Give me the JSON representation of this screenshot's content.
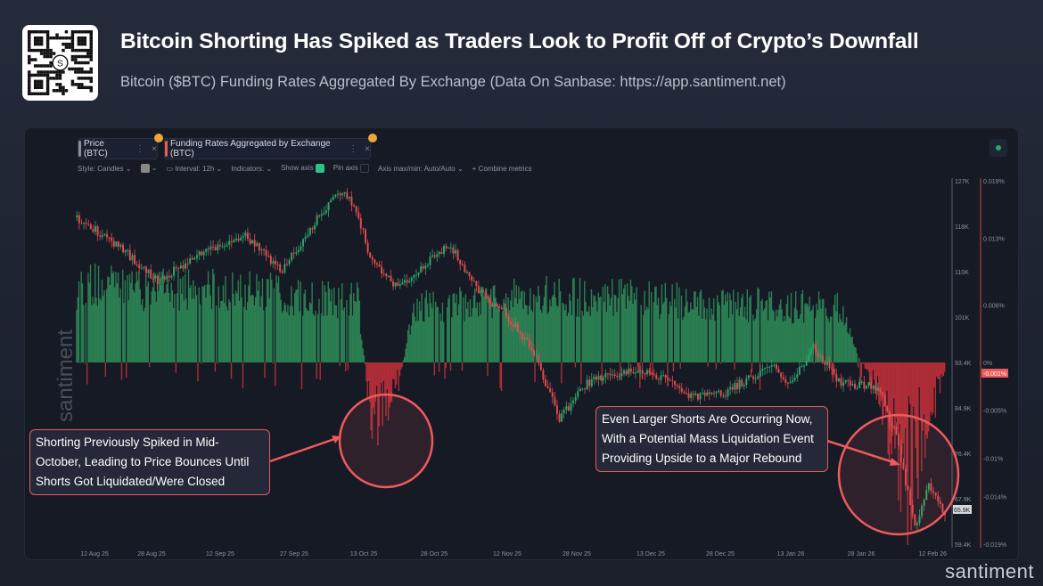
{
  "header": {
    "title": "Bitcoin Shorting Has Spiked as Traders Look to Profit Off of Crypto’s Downfall",
    "subtitle": "Bitcoin ($BTC) Funding Rates Aggregated By Exchange (Data On Sanbase: https://app.santiment.net)",
    "qr_logo_text": "S"
  },
  "tabs": [
    {
      "label": "Price (BTC)",
      "color": "#8a8f9a"
    },
    {
      "label": "Funding Rates Aggregated by Exchange (BTC)",
      "color": "#e9585a"
    }
  ],
  "toolbar": {
    "style": "Style: Candles",
    "interval": "Interval: 12h",
    "indicators": "Indicators:",
    "show_axis": "Show axis",
    "show_axis_checked": true,
    "pin_axis": "Pin axis",
    "pin_axis_checked": false,
    "axis_range": "Axis max/min: Auto/Auto",
    "combine": "+ Combine metrics"
  },
  "watermark": "santiment",
  "brand": "santiment",
  "annotations": [
    {
      "text": "Shorting Previously Spiked in Mid-October, Leading to Price Bounces Until Shorts Got Liquidated/Were Closed"
    },
    {
      "text": "Even Larger Shorts Are Occurring Now, With a Potential Mass Liquidation Event Providing Upside to a Major Rebound"
    }
  ],
  "colors": {
    "up": "#2fa36b",
    "down": "#e04a4f",
    "funding_pos": "#2e8a58",
    "funding_neg": "#c0303a",
    "accent": "#e9585a"
  },
  "chart_data": {
    "type": "candlestick+bar",
    "x_ticks": [
      "12 Aug 25",
      "28 Aug 25",
      "12 Sep 25",
      "27 Sep 25",
      "13 Oct 25",
      "28 Oct 25",
      "12 Nov 25",
      "28 Nov 25",
      "13 Dec 25",
      "28 Dec 25",
      "13 Jan 26",
      "28 Jan 26",
      "12 Feb 26"
    ],
    "price_axis": {
      "ticks": [
        "127K",
        "118K",
        "110K",
        "101K",
        "93.4K",
        "84.9K",
        "76.4K",
        "67.9K",
        "59.4K"
      ],
      "range": [
        59.4,
        127
      ],
      "unit": "K USD",
      "current": "65.9K"
    },
    "funding_axis": {
      "ticks": [
        "0.019%",
        "0.013%",
        "0.006%",
        "0%",
        "-0.005%",
        "-0.01%",
        "-0.014%",
        "-0.019%"
      ],
      "range": [
        -0.019,
        0.019
      ],
      "current": "-0.001%"
    },
    "price_series": [
      [
        "2025-08-08",
        120.2
      ],
      [
        "2025-08-16",
        116
      ],
      [
        "2025-08-26",
        108.6
      ],
      [
        "2025-09-05",
        113.6
      ],
      [
        "2025-09-14",
        117
      ],
      [
        "2025-09-22",
        110.3
      ],
      [
        "2025-10-01",
        121.9
      ],
      [
        "2025-10-05",
        125.2
      ],
      [
        "2025-10-08",
        121.9
      ],
      [
        "2025-10-11",
        112.8
      ],
      [
        "2025-10-17",
        107
      ],
      [
        "2025-10-22",
        111.1
      ],
      [
        "2025-10-28",
        115.3
      ],
      [
        "2025-11-04",
        106.2
      ],
      [
        "2025-11-09",
        102.8
      ],
      [
        "2025-11-15",
        96.2
      ],
      [
        "2025-11-21",
        83
      ],
      [
        "2025-11-27",
        89.6
      ],
      [
        "2025-12-03",
        91.2
      ],
      [
        "2025-12-10",
        92
      ],
      [
        "2025-12-20",
        87.1
      ],
      [
        "2025-12-27",
        87.9
      ],
      [
        "2026-01-06",
        92.9
      ],
      [
        "2026-01-10",
        89.6
      ],
      [
        "2026-01-15",
        96.2
      ],
      [
        "2026-01-21",
        89.6
      ],
      [
        "2026-01-29",
        88.8
      ],
      [
        "2026-02-02",
        79.6
      ],
      [
        "2026-02-06",
        63
      ],
      [
        "2026-02-09",
        70.5
      ],
      [
        "2026-02-12",
        65.9
      ]
    ],
    "funding_series": [
      [
        "2025-08-08",
        0.01
      ],
      [
        "2025-09-20",
        0.009
      ],
      [
        "2025-10-08",
        0.008
      ],
      [
        "2025-10-11",
        -0.009
      ],
      [
        "2025-10-16",
        -0.005
      ],
      [
        "2025-10-20",
        0.007
      ],
      [
        "2025-11-15",
        0.009
      ],
      [
        "2025-12-15",
        0.008
      ],
      [
        "2026-01-20",
        0.007
      ],
      [
        "2026-01-28",
        -0.004
      ],
      [
        "2026-02-04",
        -0.018
      ],
      [
        "2026-02-12",
        -0.001
      ]
    ]
  }
}
